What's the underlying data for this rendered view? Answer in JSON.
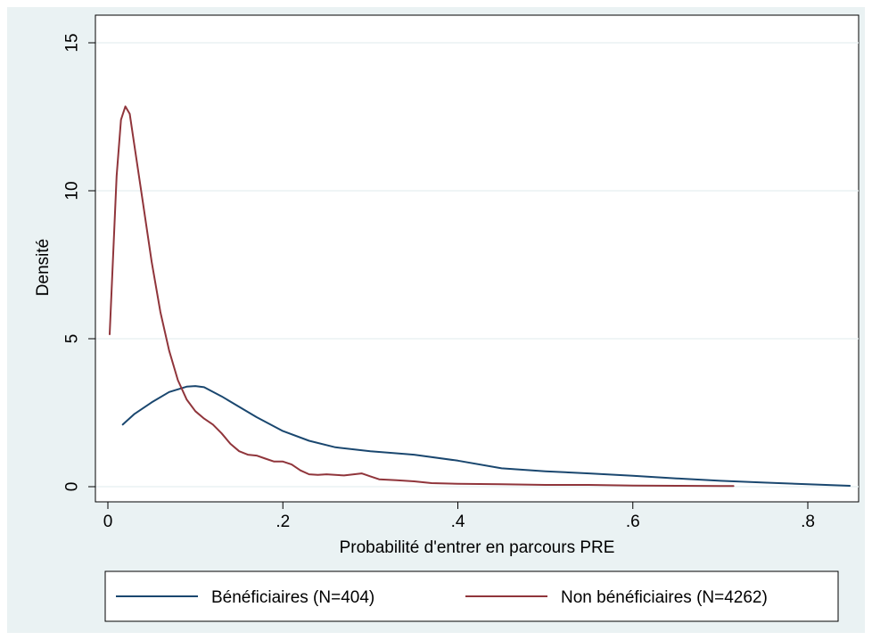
{
  "chart_data": {
    "type": "line",
    "title": "",
    "xlabel": "Probabilité d'entrer en parcours PRE",
    "ylabel": "Densité",
    "xlim": [
      0,
      0.85
    ],
    "ylim": [
      0,
      15
    ],
    "x_ticks": [
      {
        "value": 0,
        "label": "0"
      },
      {
        "value": 0.2,
        "label": ".2"
      },
      {
        "value": 0.4,
        "label": ".4"
      },
      {
        "value": 0.6,
        "label": ".6"
      },
      {
        "value": 0.8,
        "label": ".8"
      }
    ],
    "y_ticks": [
      {
        "value": 0,
        "label": "0"
      },
      {
        "value": 5,
        "label": "5"
      },
      {
        "value": 10,
        "label": "10"
      },
      {
        "value": 15,
        "label": "15"
      }
    ],
    "grid": "horizontal",
    "legend_position": "bottom",
    "series": [
      {
        "name": "Bénéficiaires (N=404)",
        "color": "#1a476f",
        "x": [
          0.017,
          0.03,
          0.05,
          0.07,
          0.09,
          0.1,
          0.11,
          0.13,
          0.15,
          0.17,
          0.2,
          0.23,
          0.26,
          0.3,
          0.35,
          0.4,
          0.45,
          0.5,
          0.55,
          0.6,
          0.65,
          0.7,
          0.75,
          0.8,
          0.848
        ],
        "y": [
          2.1,
          2.45,
          2.85,
          3.2,
          3.38,
          3.4,
          3.36,
          3.05,
          2.7,
          2.35,
          1.88,
          1.55,
          1.33,
          1.2,
          1.08,
          0.88,
          0.62,
          0.52,
          0.45,
          0.37,
          0.28,
          0.2,
          0.14,
          0.08,
          0.03
        ]
      },
      {
        "name": "Non bénéficiaires (N=4262)",
        "color": "#90353b",
        "x": [
          0.002,
          0.01,
          0.015,
          0.02,
          0.025,
          0.03,
          0.04,
          0.05,
          0.06,
          0.07,
          0.08,
          0.09,
          0.1,
          0.11,
          0.12,
          0.13,
          0.14,
          0.15,
          0.16,
          0.17,
          0.18,
          0.19,
          0.2,
          0.21,
          0.22,
          0.23,
          0.24,
          0.25,
          0.27,
          0.29,
          0.3,
          0.31,
          0.33,
          0.35,
          0.37,
          0.4,
          0.45,
          0.5,
          0.55,
          0.6,
          0.65,
          0.7,
          0.715
        ],
        "y": [
          5.15,
          10.5,
          12.4,
          12.85,
          12.6,
          11.6,
          9.6,
          7.6,
          5.9,
          4.6,
          3.6,
          2.95,
          2.55,
          2.3,
          2.1,
          1.8,
          1.45,
          1.2,
          1.08,
          1.05,
          0.95,
          0.85,
          0.85,
          0.75,
          0.55,
          0.42,
          0.4,
          0.42,
          0.38,
          0.45,
          0.35,
          0.25,
          0.22,
          0.18,
          0.12,
          0.1,
          0.08,
          0.06,
          0.06,
          0.04,
          0.03,
          0.02,
          0.02
        ]
      }
    ]
  }
}
